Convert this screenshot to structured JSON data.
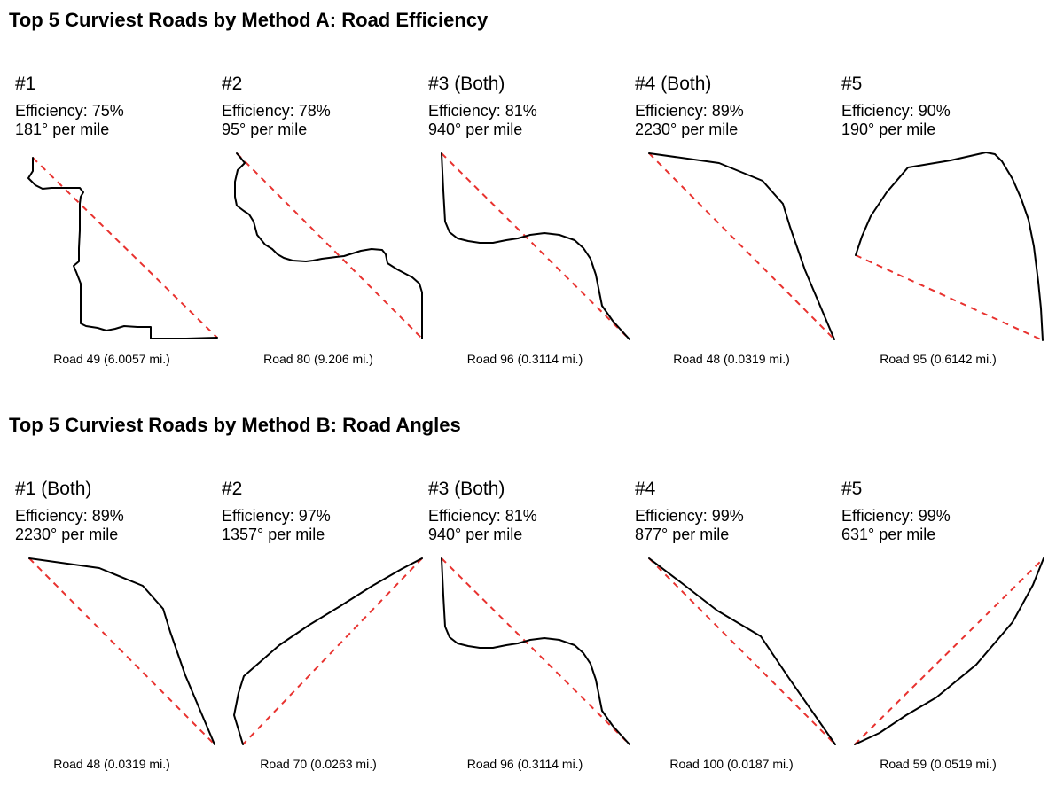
{
  "colors": {
    "road": "#000000",
    "chord": "#e8322f",
    "background": "#ffffff"
  },
  "chart_data": [
    {
      "type": "line",
      "title": "Top 5 Curviest Roads by Method A: Road Efficiency",
      "panels": [
        {
          "rank": "#1",
          "efficiency": "Efficiency: 75%",
          "degrees": "181° per mile",
          "caption": "Road 49 (6.0057 mi.)",
          "path": [
            [
              17,
              8
            ],
            [
              17,
              23
            ],
            [
              12,
              31
            ],
            [
              20,
              39
            ],
            [
              28,
              43
            ],
            [
              38,
              42
            ],
            [
              55,
              42
            ],
            [
              70,
              42
            ],
            [
              74,
              47
            ],
            [
              71,
              52
            ],
            [
              70,
              60
            ],
            [
              70,
              90
            ],
            [
              69,
              110
            ],
            [
              69,
              125
            ],
            [
              63,
              130
            ],
            [
              66,
              137
            ],
            [
              71,
              150
            ],
            [
              71,
              165
            ],
            [
              71,
              195
            ],
            [
              77,
              198
            ],
            [
              90,
              200
            ],
            [
              100,
              203
            ],
            [
              110,
              201
            ],
            [
              120,
              198
            ],
            [
              135,
              199
            ],
            [
              150,
              199
            ],
            [
              150,
              212
            ],
            [
              190,
              212
            ],
            [
              225,
              211
            ]
          ]
        },
        {
          "rank": "#2",
          "efficiency": "Efficiency: 78%",
          "degrees": "95° per mile",
          "caption": "Road 80 (9.206 mi.)",
          "path": [
            [
              14,
              3
            ],
            [
              20,
              10
            ],
            [
              23,
              14
            ],
            [
              15,
              22
            ],
            [
              12,
              35
            ],
            [
              12,
              52
            ],
            [
              14,
              62
            ],
            [
              22,
              68
            ],
            [
              28,
              72
            ],
            [
              33,
              80
            ],
            [
              37,
              95
            ],
            [
              46,
              106
            ],
            [
              54,
              111
            ],
            [
              60,
              117
            ],
            [
              67,
              121
            ],
            [
              77,
              124
            ],
            [
              92,
              125
            ],
            [
              100,
              124
            ],
            [
              110,
              122
            ],
            [
              126,
              120
            ],
            [
              135,
              119
            ],
            [
              154,
              113
            ],
            [
              166,
              111
            ],
            [
              178,
              112
            ],
            [
              182,
              117
            ],
            [
              184,
              127
            ],
            [
              195,
              134
            ],
            [
              212,
              143
            ],
            [
              220,
              150
            ],
            [
              223,
              160
            ],
            [
              223,
              180
            ],
            [
              223,
              212
            ]
          ]
        },
        {
          "rank": "#3 (Both)",
          "efficiency": "Efficiency: 81%",
          "degrees": "940° per mile",
          "caption": "Road 96 (0.3114 mi.)",
          "path": [
            [
              12,
              3
            ],
            [
              14,
              45
            ],
            [
              16,
              80
            ],
            [
              21,
              92
            ],
            [
              30,
              99
            ],
            [
              42,
              102
            ],
            [
              55,
              104
            ],
            [
              70,
              104
            ],
            [
              85,
              101
            ],
            [
              98,
              99
            ],
            [
              112,
              95
            ],
            [
              128,
              93
            ],
            [
              145,
              95
            ],
            [
              162,
              101
            ],
            [
              172,
              110
            ],
            [
              180,
              122
            ],
            [
              186,
              140
            ],
            [
              193,
              175
            ],
            [
              205,
              192
            ],
            [
              224,
              213
            ]
          ]
        },
        {
          "rank": "#4 (Both)",
          "efficiency": "Efficiency: 89%",
          "degrees": "2230° per mile",
          "caption": "Road 48 (0.0319 mi.)",
          "path": [
            [
              13,
              3
            ],
            [
              92,
              14
            ],
            [
              141,
              34
            ],
            [
              164,
              60
            ],
            [
              172,
              86
            ],
            [
              189,
              135
            ],
            [
              222,
              213
            ]
          ]
        },
        {
          "rank": "#5",
          "efficiency": "Efficiency: 90%",
          "degrees": "190° per mile",
          "caption": "Road 95 (0.6142 mi.)",
          "path": [
            [
              13,
              118
            ],
            [
              20,
              97
            ],
            [
              30,
              74
            ],
            [
              48,
              47
            ],
            [
              72,
              19
            ],
            [
              90,
              16
            ],
            [
              120,
              11
            ],
            [
              160,
              2
            ],
            [
              170,
              4
            ],
            [
              178,
              12
            ],
            [
              190,
              32
            ],
            [
              200,
              55
            ],
            [
              208,
              78
            ],
            [
              214,
              108
            ],
            [
              219,
              148
            ],
            [
              222,
              178
            ],
            [
              224,
              214
            ]
          ]
        }
      ]
    },
    {
      "type": "line",
      "title": "Top 5 Curviest Roads by Method B: Road Angles",
      "panels": [
        {
          "rank": "#1 (Both)",
          "efficiency": "Efficiency: 89%",
          "degrees": "2230° per mile",
          "caption": "Road 48 (0.0319 mi.)",
          "path": [
            [
              13,
              3
            ],
            [
              92,
              14
            ],
            [
              141,
              34
            ],
            [
              164,
              60
            ],
            [
              172,
              86
            ],
            [
              189,
              135
            ],
            [
              222,
              213
            ]
          ]
        },
        {
          "rank": "#2",
          "efficiency": "Efficiency: 97%",
          "degrees": "1357° per mile",
          "caption": "Road 70 (0.0263 mi.)",
          "path": [
            [
              223,
              3
            ],
            [
              200,
              15
            ],
            [
              167,
              34
            ],
            [
              129,
              58
            ],
            [
              96,
              78
            ],
            [
              62,
              101
            ],
            [
              22,
              136
            ],
            [
              16,
              155
            ],
            [
              11,
              180
            ],
            [
              21,
              213
            ]
          ]
        },
        {
          "rank": "#3 (Both)",
          "efficiency": "Efficiency: 81%",
          "degrees": "940° per mile",
          "caption": "Road 96 (0.3114 mi.)",
          "path": [
            [
              12,
              3
            ],
            [
              14,
              45
            ],
            [
              16,
              80
            ],
            [
              21,
              92
            ],
            [
              30,
              99
            ],
            [
              42,
              102
            ],
            [
              55,
              104
            ],
            [
              70,
              104
            ],
            [
              85,
              101
            ],
            [
              98,
              99
            ],
            [
              112,
              95
            ],
            [
              128,
              93
            ],
            [
              145,
              95
            ],
            [
              162,
              101
            ],
            [
              172,
              110
            ],
            [
              180,
              122
            ],
            [
              186,
              140
            ],
            [
              193,
              175
            ],
            [
              205,
              192
            ],
            [
              224,
              213
            ]
          ]
        },
        {
          "rank": "#4",
          "efficiency": "Efficiency: 99%",
          "degrees": "877° per mile",
          "caption": "Road 100 (0.0187 mi.)",
          "path": [
            [
              13,
              3
            ],
            [
              50,
              31
            ],
            [
              90,
              62
            ],
            [
              139,
              91
            ],
            [
              170,
              137
            ],
            [
              223,
              213
            ]
          ]
        },
        {
          "rank": "#5",
          "efficiency": "Efficiency: 99%",
          "degrees": "631° per mile",
          "caption": "Road 59 (0.0519 mi.)",
          "path": [
            [
              12,
              213
            ],
            [
              40,
              200
            ],
            [
              70,
              180
            ],
            [
              104,
              160
            ],
            [
              149,
              123
            ],
            [
              190,
              75
            ],
            [
              213,
              33
            ],
            [
              225,
              3
            ]
          ]
        }
      ]
    }
  ]
}
